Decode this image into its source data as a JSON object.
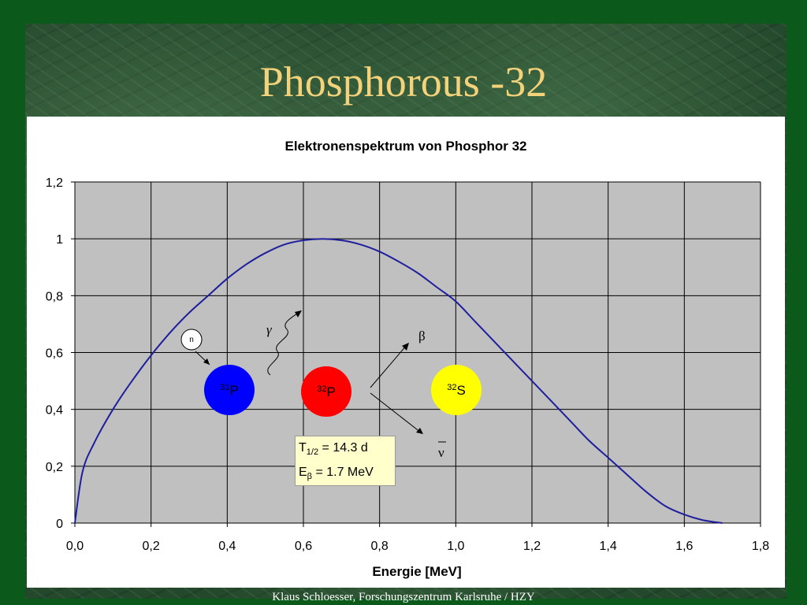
{
  "slide": {
    "title": "Phosphorous -32",
    "footer": "Klaus Schloesser,  Forschungszentrum Karlsruhe / HZY"
  },
  "chart_data": {
    "type": "line",
    "title": "Elektronenspektrum von Phosphor 32",
    "xlabel": "Energie [MeV]",
    "ylabel": "",
    "xlim": [
      0,
      1.8
    ],
    "ylim": [
      0,
      1.2
    ],
    "xticks": [
      0.0,
      0.2,
      0.4,
      0.6,
      0.8,
      1.0,
      1.2,
      1.4,
      1.6,
      1.8
    ],
    "xtick_labels": [
      "0,0",
      "0,2",
      "0,4",
      "0,6",
      "0,8",
      "1,0",
      "1,2",
      "1,4",
      "1,6",
      "1,8"
    ],
    "yticks": [
      0,
      0.2,
      0.4,
      0.6,
      0.8,
      1.0,
      1.2
    ],
    "ytick_labels": [
      "0",
      "0,2",
      "0,4",
      "0,6",
      "0,8",
      "1",
      "1,2"
    ],
    "grid": true,
    "plot_background": "#c0c0c0",
    "series": [
      {
        "color": "#1f1f9e",
        "x": [
          0.0,
          0.02,
          0.05,
          0.1,
          0.15,
          0.2,
          0.25,
          0.3,
          0.35,
          0.4,
          0.45,
          0.5,
          0.55,
          0.6,
          0.65,
          0.7,
          0.75,
          0.8,
          0.85,
          0.9,
          0.95,
          1.0,
          1.05,
          1.1,
          1.15,
          1.2,
          1.25,
          1.3,
          1.35,
          1.4,
          1.45,
          1.5,
          1.55,
          1.6,
          1.65,
          1.7
        ],
        "y": [
          0.0,
          0.18,
          0.28,
          0.4,
          0.5,
          0.59,
          0.67,
          0.74,
          0.8,
          0.86,
          0.91,
          0.95,
          0.98,
          0.995,
          1.0,
          0.995,
          0.98,
          0.955,
          0.92,
          0.88,
          0.83,
          0.78,
          0.71,
          0.64,
          0.57,
          0.5,
          0.43,
          0.36,
          0.29,
          0.23,
          0.17,
          0.11,
          0.06,
          0.03,
          0.01,
          0.0
        ]
      }
    ]
  },
  "diagram": {
    "neutron_label": "n",
    "gamma_label": "γ",
    "beta_label": "β",
    "antineutrino_label": "ν",
    "p31_mass": "31",
    "p31_symbol": "P",
    "p32_mass": "32",
    "p32_symbol": "P",
    "s32_mass": "32",
    "s32_symbol": "S",
    "colors": {
      "p31": "#0000ff",
      "p32": "#ff0000",
      "s32": "#ffff00",
      "neutron": "#ffffff"
    }
  },
  "info": {
    "half_life_symbol": "T",
    "half_life_sub": "1/2",
    "half_life_value": " = 14.3 d",
    "energy_symbol": "E",
    "energy_sub": "β",
    "energy_value": " = 1.7 MeV"
  }
}
